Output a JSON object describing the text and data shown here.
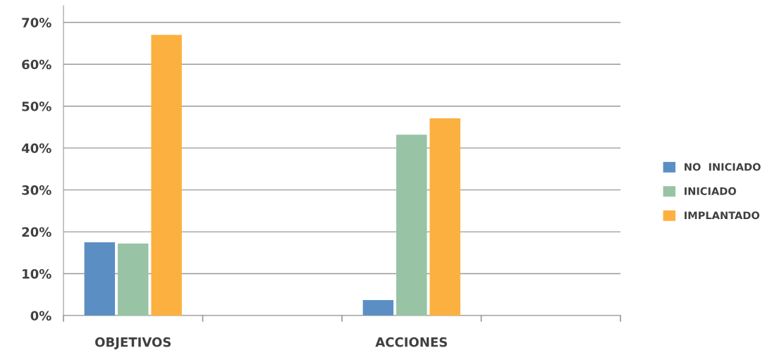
{
  "chart_data": {
    "type": "bar",
    "categories": [
      "OBJETIVOS",
      null,
      "ACCIONES",
      null
    ],
    "series": [
      {
        "name": "NO  INICIADO",
        "color": "#5b8fc4",
        "values": [
          17.5,
          null,
          3.7,
          null
        ]
      },
      {
        "name": "INICIADO",
        "color": "#98c3a5",
        "values": [
          17.2,
          null,
          43.2,
          null
        ]
      },
      {
        "name": "IMPLANTADO",
        "color": "#fbb040",
        "values": [
          67,
          null,
          47.1,
          null
        ]
      }
    ],
    "ylim": [
      0,
      74
    ],
    "yticks": [
      {
        "value": 0,
        "label": "0%"
      },
      {
        "value": 10,
        "label": "10%"
      },
      {
        "value": 20,
        "label": "20%"
      },
      {
        "value": 30,
        "label": "30%"
      },
      {
        "value": 40,
        "label": "40%"
      },
      {
        "value": 50,
        "label": "50%"
      },
      {
        "value": 60,
        "label": "60%"
      },
      {
        "value": 70,
        "label": "70%"
      }
    ],
    "grid": "y",
    "legend": "right"
  }
}
